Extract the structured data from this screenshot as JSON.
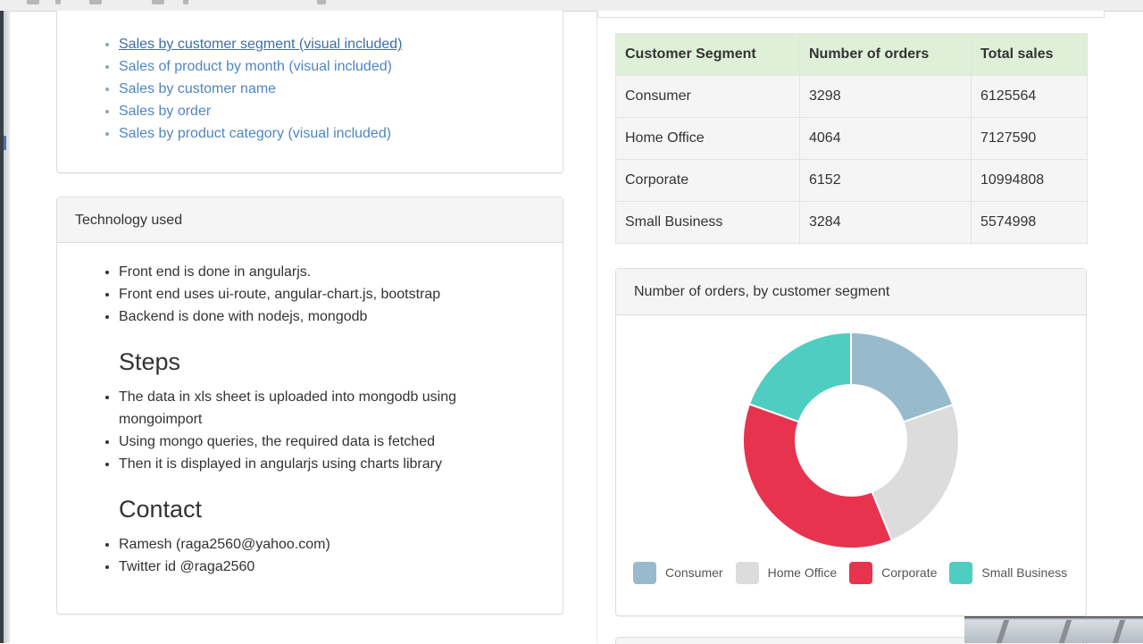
{
  "report_links": [
    "Sales by customer segment (visual included)",
    "Sales of product by month (visual included)",
    "Sales by customer name",
    "Sales by order",
    "Sales by product category (visual included)"
  ],
  "tech_panel": {
    "heading": "Technology used",
    "items": [
      "Front end is done in angularjs.",
      "Front end uses ui-route, angular-chart.js, bootstrap",
      "Backend is done with nodejs, mongodb"
    ],
    "steps_title": "Steps",
    "steps": [
      "The data in xls sheet is uploaded into mongodb using mongoimport",
      "Using mongo queries, the required data is fetched",
      "Then it is displayed in angularjs using charts library"
    ],
    "contact_title": "Contact",
    "contact": [
      "Ramesh (raga2560@yahoo.com)",
      "Twitter id @raga2560"
    ]
  },
  "segment_table": {
    "headers": [
      "Customer Segment",
      "Number of orders",
      "Total sales"
    ],
    "rows": [
      [
        "Consumer",
        "3298",
        "6125564"
      ],
      [
        "Home Office",
        "4064",
        "7127590"
      ],
      [
        "Corporate",
        "6152",
        "10994808"
      ],
      [
        "Small Business",
        "3284",
        "5574998"
      ]
    ]
  },
  "chart_panel": {
    "heading": "Number of orders, by customer segment"
  },
  "chart_data": {
    "type": "pie",
    "variant": "doughnut",
    "title": "Number of orders, by customer segment",
    "categories": [
      "Consumer",
      "Home Office",
      "Corporate",
      "Small Business"
    ],
    "values": [
      3298,
      4064,
      6152,
      3284
    ],
    "colors": [
      "#97bbcd",
      "#dcdcdc",
      "#e8334f",
      "#4ecdc0"
    ],
    "legend_position": "bottom",
    "start": "top, clockwise"
  },
  "colors": {
    "link": "#4f86c0",
    "table_header_bg": "#dff0d8",
    "panel_heading_bg": "#f5f5f5"
  }
}
